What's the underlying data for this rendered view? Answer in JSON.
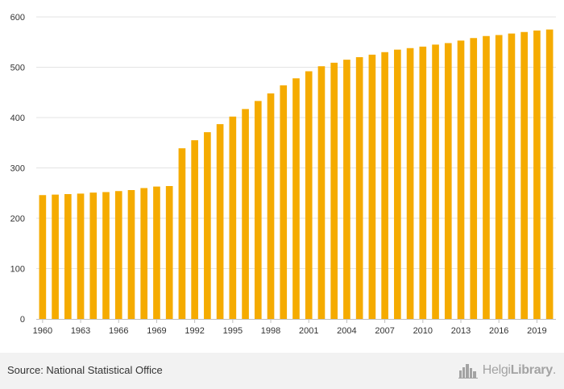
{
  "chart_data": {
    "type": "bar",
    "title": "",
    "xlabel": "",
    "ylabel": "",
    "ylim": [
      0,
      600
    ],
    "yticks": [
      0,
      100,
      200,
      300,
      400,
      500,
      600
    ],
    "x_tick_labels": [
      "1960",
      "1963",
      "1966",
      "1969",
      "1992",
      "1995",
      "1998",
      "2001",
      "2004",
      "2007",
      "2010",
      "2013",
      "2016",
      "2019"
    ],
    "x_tick_every": 3,
    "bar_count": 41,
    "values": [
      246,
      247,
      248,
      249,
      251,
      252,
      254,
      256,
      260,
      263,
      264,
      339,
      355,
      371,
      387,
      402,
      417,
      433,
      448,
      464,
      478,
      492,
      502,
      509,
      515,
      520,
      525,
      530,
      535,
      538,
      541,
      545,
      548,
      553,
      558,
      562,
      564,
      567,
      570,
      573,
      575
    ],
    "bar_color": "#f5ab00",
    "grid": true,
    "legend": "none"
  },
  "footer": {
    "source": "Source: National Statistical Office",
    "brand_light": "Helgi",
    "brand_bold": "Library",
    "brand_suffix": "."
  }
}
